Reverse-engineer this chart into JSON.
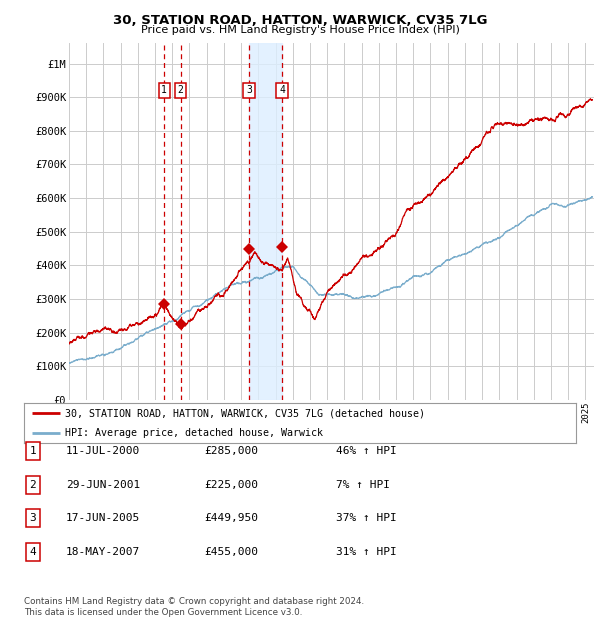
{
  "title": "30, STATION ROAD, HATTON, WARWICK, CV35 7LG",
  "subtitle": "Price paid vs. HM Land Registry's House Price Index (HPI)",
  "ytick_values": [
    0,
    100000,
    200000,
    300000,
    400000,
    500000,
    600000,
    700000,
    800000,
    900000,
    1000000
  ],
  "ylim": [
    0,
    1060000
  ],
  "xlim_start": 1995.0,
  "xlim_end": 2025.5,
  "legend_label_red": "30, STATION ROAD, HATTON, WARWICK, CV35 7LG (detached house)",
  "legend_label_blue": "HPI: Average price, detached house, Warwick",
  "transactions": [
    {
      "num": 1,
      "date": "11-JUL-2000",
      "price": 285000,
      "pct": "46%",
      "dir": "↑",
      "year": 2000.53
    },
    {
      "num": 2,
      "date": "29-JUN-2001",
      "price": 225000,
      "pct": "7%",
      "dir": "↑",
      "year": 2001.49
    },
    {
      "num": 3,
      "date": "17-JUN-2005",
      "price": 449950,
      "pct": "37%",
      "dir": "↑",
      "year": 2005.46
    },
    {
      "num": 4,
      "date": "18-MAY-2007",
      "price": 455000,
      "pct": "31%",
      "dir": "↑",
      "year": 2007.38
    }
  ],
  "footer_text": "Contains HM Land Registry data © Crown copyright and database right 2024.\nThis data is licensed under the Open Government Licence v3.0.",
  "bg_color": "#ffffff",
  "grid_color": "#cccccc",
  "red_color": "#cc0000",
  "blue_color": "#7aadcc",
  "shade_color": "#ddeeff"
}
